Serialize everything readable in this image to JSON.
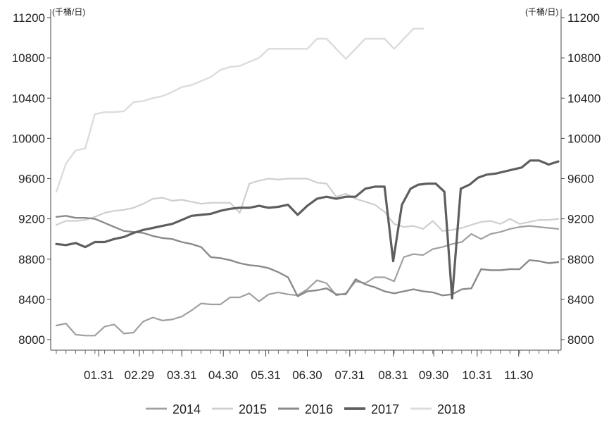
{
  "chart_data": {
    "type": "line",
    "unit_left": "(千桶/日)",
    "unit_right": "(千桶/日)",
    "ylim": [
      8000,
      11200
    ],
    "y_ticks": [
      8000,
      8400,
      8800,
      9200,
      9600,
      10000,
      10400,
      10800,
      11200
    ],
    "x_ticks": [
      "01.31",
      "02.29",
      "03.31",
      "04.30",
      "05.31",
      "06.30",
      "07.31",
      "08.31",
      "09.30",
      "10.31",
      "11.30"
    ],
    "x_tick_weeks": [
      4.4,
      8.6,
      13,
      17.3,
      21.7,
      26,
      30.4,
      34.9,
      39.1,
      43.6,
      47.9
    ],
    "x_range": [
      0,
      52
    ],
    "grid": false,
    "legend_position": "bottom",
    "series": [
      {
        "name": "2014",
        "color": "#a0a0a0",
        "width": 2.2,
        "x": [
          0,
          1,
          2,
          3,
          4,
          5,
          6,
          7,
          8,
          9,
          10,
          11,
          12,
          13,
          14,
          15,
          16,
          17,
          18,
          19,
          20,
          21,
          22,
          23,
          24,
          25,
          26,
          27,
          28,
          29,
          30,
          31,
          32,
          33,
          34,
          35,
          36,
          37,
          38,
          39,
          40,
          41,
          42,
          43,
          44,
          45,
          46,
          47,
          48,
          49,
          50,
          51,
          52
        ],
        "values": [
          8140,
          8160,
          8050,
          8040,
          8040,
          8130,
          8150,
          8060,
          8070,
          8180,
          8220,
          8190,
          8200,
          8230,
          8290,
          8360,
          8350,
          8350,
          8420,
          8420,
          8460,
          8380,
          8450,
          8470,
          8450,
          8440,
          8500,
          8590,
          8560,
          8440,
          8460,
          8580,
          8560,
          8620,
          8620,
          8580,
          8820,
          8850,
          8840,
          8900,
          8920,
          8950,
          8970,
          9050,
          9000,
          9050,
          9070,
          9100,
          9120,
          9130,
          9120,
          9110,
          9100
        ]
      },
      {
        "name": "2015",
        "color": "#cfcfcf",
        "width": 2.2,
        "x": [
          0,
          1,
          2,
          3,
          4,
          5,
          6,
          7,
          8,
          9,
          10,
          11,
          12,
          13,
          14,
          15,
          16,
          17,
          18,
          19,
          20,
          21,
          22,
          23,
          24,
          25,
          26,
          27,
          28,
          29,
          30,
          31,
          32,
          33,
          34,
          35,
          36,
          37,
          38,
          39,
          40,
          41,
          42,
          43,
          44,
          45,
          46,
          47,
          48,
          49,
          50,
          51,
          52
        ],
        "values": [
          9140,
          9180,
          9180,
          9190,
          9220,
          9260,
          9280,
          9290,
          9310,
          9350,
          9400,
          9410,
          9380,
          9390,
          9370,
          9350,
          9360,
          9360,
          9360,
          9260,
          9550,
          9580,
          9600,
          9590,
          9600,
          9600,
          9600,
          9560,
          9550,
          9420,
          9450,
          9400,
          9370,
          9340,
          9270,
          9150,
          9120,
          9130,
          9100,
          9180,
          9080,
          9090,
          9110,
          9140,
          9170,
          9180,
          9150,
          9200,
          9150,
          9170,
          9190,
          9190,
          9200
        ]
      },
      {
        "name": "2016",
        "color": "#8a8a8a",
        "width": 2.4,
        "x": [
          0,
          1,
          2,
          3,
          4,
          5,
          6,
          7,
          8,
          9,
          10,
          11,
          12,
          13,
          14,
          15,
          16,
          17,
          18,
          19,
          20,
          21,
          22,
          23,
          24,
          25,
          26,
          27,
          28,
          29,
          30,
          31,
          32,
          33,
          34,
          35,
          36,
          37,
          38,
          39,
          40,
          41,
          42,
          43,
          44,
          45,
          46,
          47,
          48,
          49,
          50,
          51,
          52
        ],
        "values": [
          9220,
          9230,
          9210,
          9210,
          9200,
          9160,
          9120,
          9080,
          9070,
          9060,
          9030,
          9010,
          9000,
          8970,
          8950,
          8920,
          8820,
          8810,
          8790,
          8760,
          8740,
          8730,
          8710,
          8670,
          8620,
          8430,
          8480,
          8490,
          8510,
          8450,
          8450,
          8600,
          8550,
          8520,
          8480,
          8460,
          8480,
          8500,
          8480,
          8470,
          8440,
          8450,
          8500,
          8510,
          8700,
          8690,
          8690,
          8700,
          8700,
          8790,
          8780,
          8760,
          8770
        ]
      },
      {
        "name": "2017",
        "color": "#5e5e5e",
        "width": 3.2,
        "x": [
          0,
          1,
          2,
          3,
          4,
          5,
          6,
          7,
          8,
          9,
          10,
          11,
          12,
          13,
          14,
          15,
          16,
          17,
          18,
          19,
          20,
          21,
          22,
          23,
          24,
          25,
          26,
          27,
          28,
          29,
          30,
          31,
          32,
          33,
          34,
          34.9,
          35.8,
          36.7,
          37.5,
          38.4,
          39.3,
          40.2,
          41,
          41.9,
          42.8,
          43.7,
          44.6,
          45.5,
          46.4,
          47.3,
          48.2,
          49.1,
          50,
          51,
          52
        ],
        "values": [
          8950,
          8940,
          8960,
          8920,
          8970,
          8970,
          9000,
          9020,
          9060,
          9090,
          9110,
          9130,
          9150,
          9190,
          9230,
          9240,
          9250,
          9280,
          9300,
          9310,
          9310,
          9330,
          9310,
          9320,
          9340,
          9240,
          9330,
          9400,
          9420,
          9400,
          9420,
          9420,
          9500,
          9520,
          9520,
          8780,
          9340,
          9500,
          9540,
          9550,
          9550,
          9470,
          8410,
          9500,
          9540,
          9610,
          9640,
          9650,
          9670,
          9690,
          9710,
          9780,
          9780,
          9740,
          9770
        ]
      },
      {
        "name": "2018",
        "color": "#dcdcdc",
        "width": 2.4,
        "x": [
          0,
          1,
          2,
          3,
          4,
          5,
          6,
          7,
          8,
          9,
          10,
          11,
          12,
          13,
          14,
          15,
          16,
          17,
          18,
          19,
          20,
          21,
          22,
          23,
          24,
          25,
          26,
          27,
          28,
          29,
          30,
          31,
          32,
          33,
          34,
          35,
          36,
          37,
          38
        ],
        "values": [
          9470,
          9750,
          9880,
          9900,
          10240,
          10260,
          10260,
          10270,
          10360,
          10370,
          10400,
          10420,
          10460,
          10510,
          10530,
          10570,
          10610,
          10680,
          10710,
          10720,
          10760,
          10800,
          10890,
          10890,
          10890,
          10890,
          10890,
          10990,
          10990,
          10890,
          10790,
          10890,
          10990,
          10990,
          10990,
          10890,
          10990,
          11090,
          11090
        ]
      }
    ]
  }
}
